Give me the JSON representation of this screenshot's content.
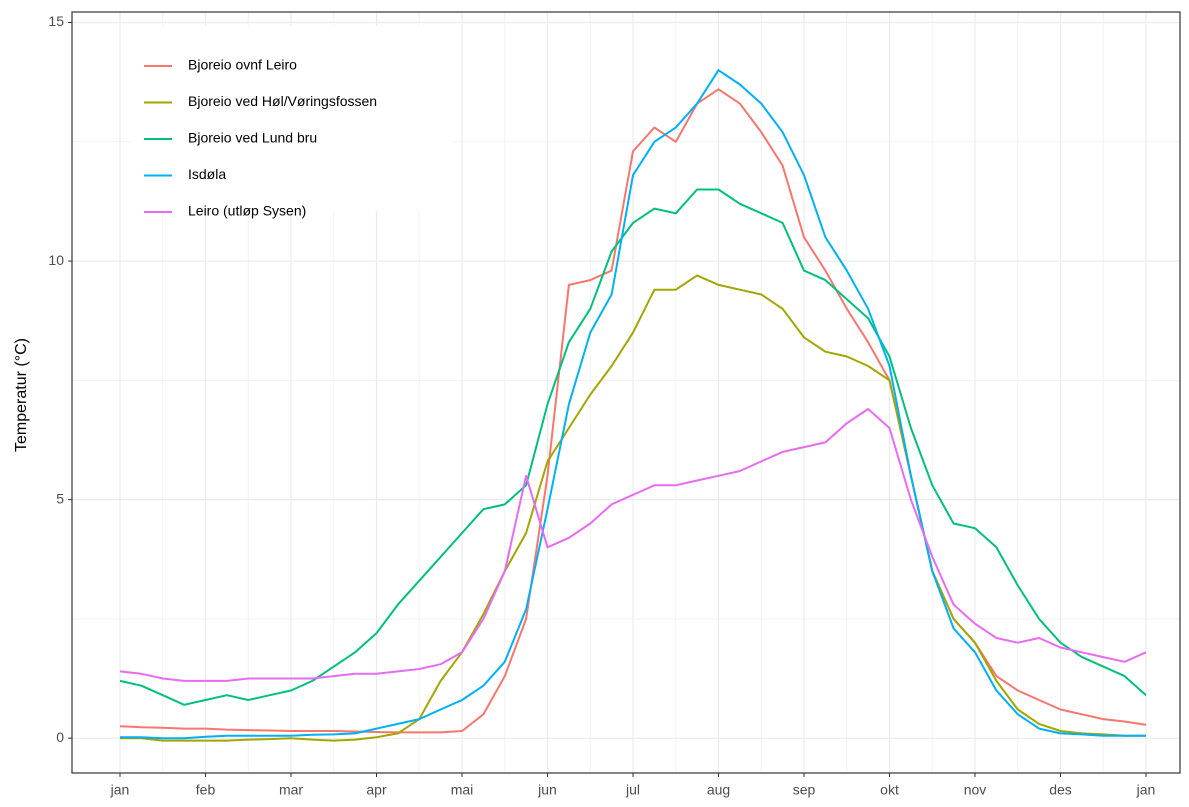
{
  "chart_data": {
    "type": "line",
    "y_label": "Temperatur (°C)",
    "categories": [
      "jan",
      null,
      null,
      null,
      "feb",
      null,
      null,
      null,
      "mar",
      null,
      null,
      null,
      "apr",
      null,
      null,
      null,
      "mai",
      null,
      null,
      null,
      "jun",
      null,
      null,
      null,
      "jul",
      null,
      null,
      null,
      "aug",
      null,
      null,
      null,
      "sep",
      null,
      null,
      null,
      "okt",
      null,
      null,
      null,
      "nov",
      null,
      null,
      null,
      "des",
      null,
      null,
      null,
      "jan"
    ],
    "ylim": [
      -0.73,
      15.22
    ],
    "yticks": [
      0,
      5,
      10,
      15
    ],
    "grid": true,
    "legend": "top-left",
    "series": [
      {
        "name": "Bjoreio ovnf Leiro",
        "color": "#F8766D",
        "values": [
          0.25,
          0.23,
          0.22,
          0.2,
          0.2,
          0.18,
          0.17,
          0.16,
          0.15,
          0.15,
          0.15,
          0.14,
          0.13,
          0.12,
          0.12,
          0.12,
          0.15,
          0.5,
          1.3,
          2.5,
          5.5,
          9.5,
          9.6,
          9.8,
          12.3,
          12.8,
          12.5,
          13.3,
          13.6,
          13.3,
          12.7,
          12.0,
          10.5,
          9.8,
          9.0,
          8.3,
          7.5,
          5.5,
          3.5,
          2.5,
          2.0,
          1.3,
          1.0,
          0.8,
          0.6,
          0.5,
          0.4,
          0.35,
          0.28
        ]
      },
      {
        "name": "Bjoreio ved Høl/Vøringsfossen",
        "color": "#A3A500",
        "values": [
          0.0,
          0.0,
          -0.05,
          -0.05,
          -0.05,
          -0.05,
          -0.03,
          -0.02,
          0.0,
          -0.03,
          -0.05,
          -0.03,
          0.02,
          0.1,
          0.4,
          1.2,
          1.8,
          2.6,
          3.5,
          4.3,
          5.8,
          6.5,
          7.2,
          7.8,
          8.5,
          9.4,
          9.4,
          9.7,
          9.5,
          9.4,
          9.3,
          9.0,
          8.4,
          8.1,
          8.0,
          7.8,
          7.5,
          5.5,
          3.5,
          2.5,
          2.0,
          1.2,
          0.6,
          0.3,
          0.15,
          0.1,
          0.08,
          0.05,
          0.05
        ]
      },
      {
        "name": "Bjoreio ved Lund bru",
        "color": "#00BF7D",
        "values": [
          1.2,
          1.1,
          0.9,
          0.7,
          0.8,
          0.9,
          0.8,
          0.9,
          1.0,
          1.2,
          1.5,
          1.8,
          2.2,
          2.8,
          3.3,
          3.8,
          4.3,
          4.8,
          4.9,
          5.3,
          7.0,
          8.3,
          9.0,
          10.2,
          10.8,
          11.1,
          11.0,
          11.5,
          11.5,
          11.2,
          11.0,
          10.8,
          9.8,
          9.6,
          9.2,
          8.8,
          8.0,
          6.5,
          5.3,
          4.5,
          4.4,
          4.0,
          3.2,
          2.5,
          2.0,
          1.7,
          1.5,
          1.3,
          0.9
        ]
      },
      {
        "name": "Isdøla",
        "color": "#00B0F6",
        "values": [
          0.02,
          0.02,
          0.0,
          0.0,
          0.03,
          0.05,
          0.05,
          0.05,
          0.05,
          0.07,
          0.08,
          0.1,
          0.2,
          0.3,
          0.4,
          0.6,
          0.8,
          1.1,
          1.6,
          2.7,
          4.8,
          7.0,
          8.5,
          9.3,
          11.8,
          12.5,
          12.8,
          13.3,
          14.0,
          13.7,
          13.3,
          12.7,
          11.8,
          10.5,
          9.8,
          9.0,
          7.8,
          5.5,
          3.5,
          2.3,
          1.8,
          1.0,
          0.5,
          0.2,
          0.1,
          0.08,
          0.05,
          0.05,
          0.05
        ]
      },
      {
        "name": "Leiro (utløp Sysen)",
        "color": "#E76BF3",
        "values": [
          1.4,
          1.35,
          1.25,
          1.2,
          1.2,
          1.2,
          1.25,
          1.25,
          1.25,
          1.25,
          1.3,
          1.35,
          1.35,
          1.4,
          1.45,
          1.55,
          1.8,
          2.5,
          3.5,
          5.5,
          4.0,
          4.2,
          4.5,
          4.9,
          5.1,
          5.3,
          5.3,
          5.4,
          5.5,
          5.6,
          5.8,
          6.0,
          6.1,
          6.2,
          6.6,
          6.9,
          6.5,
          5.0,
          3.8,
          2.8,
          2.4,
          2.1,
          2.0,
          2.1,
          1.9,
          1.8,
          1.7,
          1.6,
          1.8
        ]
      }
    ]
  }
}
